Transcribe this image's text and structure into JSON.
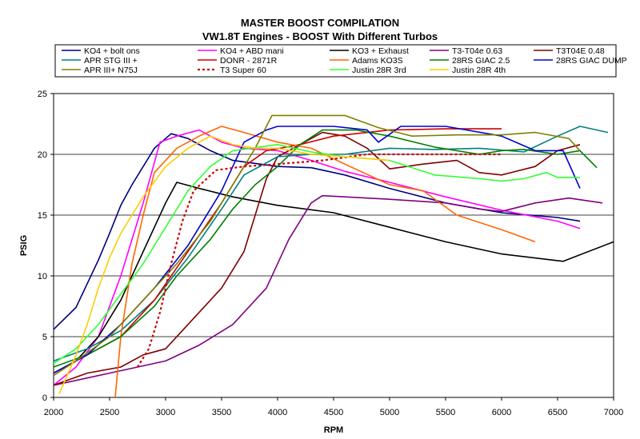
{
  "chart_data": {
    "type": "line",
    "title": "MASTER BOOST COMPILATION",
    "subtitle": "VW1.8T Engines - BOOST With Different Turbos",
    "xlabel": "RPM",
    "ylabel": "PSIG",
    "xlim": [
      2000,
      7000
    ],
    "ylim": [
      0,
      25
    ],
    "xticks": [
      "2000",
      "2500",
      "3000",
      "3500",
      "4000",
      "4500",
      "5000",
      "5500",
      "6000",
      "6500",
      "7000"
    ],
    "yticks": [
      "0",
      "5",
      "10",
      "15",
      "20",
      "25"
    ],
    "grid": "horizontal",
    "legend_position": "top",
    "series": [
      {
        "name": "KO4 + bolt ons",
        "color": "#000080",
        "dash": false,
        "points": [
          [
            2000,
            5.6
          ],
          [
            2200,
            7.4
          ],
          [
            2400,
            11.3
          ],
          [
            2500,
            13.5
          ],
          [
            2600,
            15.8
          ],
          [
            2700,
            17.5
          ],
          [
            2900,
            20.5
          ],
          [
            3050,
            21.7
          ],
          [
            3200,
            21.3
          ],
          [
            3400,
            20.3
          ],
          [
            3600,
            19.5
          ],
          [
            4000,
            19.0
          ],
          [
            4300,
            18.9
          ],
          [
            4600,
            18.3
          ],
          [
            5000,
            17.2
          ],
          [
            5500,
            16.0
          ],
          [
            6000,
            15.2
          ],
          [
            6500,
            14.8
          ],
          [
            6700,
            14.5
          ]
        ]
      },
      {
        "name": "KO4 + ABD mani",
        "color": "#ff00ff",
        "dash": false,
        "points": [
          [
            2000,
            1.0
          ],
          [
            2200,
            2.5
          ],
          [
            2400,
            5.0
          ],
          [
            2600,
            10.0
          ],
          [
            2800,
            16.0
          ],
          [
            2950,
            21.0
          ],
          [
            3100,
            21.5
          ],
          [
            3300,
            22.0
          ],
          [
            3500,
            21.0
          ],
          [
            3700,
            20.5
          ],
          [
            4000,
            20.3
          ],
          [
            4300,
            19.5
          ],
          [
            4600,
            18.6
          ],
          [
            5000,
            17.7
          ],
          [
            5500,
            16.5
          ],
          [
            6000,
            15.4
          ],
          [
            6500,
            14.5
          ],
          [
            6700,
            13.9
          ]
        ]
      },
      {
        "name": "KO3 + Exhaust",
        "color": "#000000",
        "dash": false,
        "points": [
          [
            2000,
            2.0
          ],
          [
            2200,
            3.0
          ],
          [
            2400,
            5.0
          ],
          [
            2600,
            8.0
          ],
          [
            2800,
            12.0
          ],
          [
            3000,
            16.0
          ],
          [
            3100,
            17.7
          ],
          [
            3300,
            17.2
          ],
          [
            3600,
            16.5
          ],
          [
            4000,
            15.8
          ],
          [
            4500,
            15.2
          ],
          [
            5000,
            14.0
          ],
          [
            5500,
            12.8
          ],
          [
            6000,
            11.8
          ],
          [
            6550,
            11.2
          ],
          [
            7000,
            12.8
          ]
        ]
      },
      {
        "name": "T3-T04e 0.63",
        "color": "#800080",
        "dash": false,
        "points": [
          [
            2000,
            1.0
          ],
          [
            2500,
            2.0
          ],
          [
            2800,
            2.6
          ],
          [
            3000,
            3.0
          ],
          [
            3300,
            4.3
          ],
          [
            3600,
            6.0
          ],
          [
            3900,
            9.0
          ],
          [
            4100,
            13.0
          ],
          [
            4300,
            16.0
          ],
          [
            4400,
            16.6
          ],
          [
            5000,
            16.3
          ],
          [
            5500,
            16.0
          ],
          [
            5800,
            15.5
          ],
          [
            6000,
            15.3
          ],
          [
            6300,
            16.0
          ],
          [
            6600,
            16.4
          ],
          [
            6900,
            16.0
          ]
        ]
      },
      {
        "name": "T3T04E 0.48",
        "color": "#800000",
        "dash": false,
        "points": [
          [
            2000,
            1.0
          ],
          [
            2300,
            2.0
          ],
          [
            2600,
            2.5
          ],
          [
            2800,
            3.5
          ],
          [
            3000,
            4.0
          ],
          [
            3200,
            6.0
          ],
          [
            3500,
            9.0
          ],
          [
            3700,
            12.0
          ],
          [
            3900,
            18.0
          ],
          [
            4000,
            19.8
          ],
          [
            4200,
            20.8
          ],
          [
            4400,
            21.8
          ],
          [
            4600,
            21.5
          ],
          [
            4800,
            20.5
          ],
          [
            5000,
            18.8
          ],
          [
            5300,
            19.2
          ],
          [
            5600,
            19.5
          ],
          [
            5800,
            18.5
          ],
          [
            6000,
            18.3
          ],
          [
            6300,
            19.0
          ],
          [
            6500,
            20.3
          ],
          [
            6700,
            20.8
          ]
        ]
      },
      {
        "name": "APR STG III +",
        "color": "#008080",
        "dash": false,
        "points": [
          [
            2000,
            3.0
          ],
          [
            2300,
            4.0
          ],
          [
            2600,
            5.5
          ],
          [
            2900,
            8.0
          ],
          [
            3200,
            11.5
          ],
          [
            3500,
            15.5
          ],
          [
            3700,
            18.3
          ],
          [
            4000,
            19.8
          ],
          [
            4300,
            20.0
          ],
          [
            4600,
            20.0
          ],
          [
            5000,
            20.5
          ],
          [
            5400,
            20.4
          ],
          [
            5800,
            20.5
          ],
          [
            6200,
            20.2
          ],
          [
            6500,
            21.5
          ],
          [
            6700,
            22.3
          ],
          [
            6950,
            21.8
          ]
        ]
      },
      {
        "name": "DONR - 2871R",
        "color": "#cc0000",
        "dash": false,
        "points": [
          [
            2000,
            2.0
          ],
          [
            2300,
            3.5
          ],
          [
            2600,
            5.0
          ],
          [
            2900,
            8.0
          ],
          [
            3200,
            12.0
          ],
          [
            3500,
            16.0
          ],
          [
            3700,
            19.0
          ],
          [
            3900,
            20.3
          ],
          [
            4200,
            20.8
          ],
          [
            4500,
            21.5
          ],
          [
            5000,
            22.0
          ],
          [
            5500,
            22.1
          ],
          [
            6000,
            22.1
          ]
        ]
      },
      {
        "name": "Adams KO3S",
        "color": "#ff6600",
        "dash": false,
        "points": [
          [
            2550,
            0.0
          ],
          [
            2600,
            5.0
          ],
          [
            2700,
            11.0
          ],
          [
            2800,
            15.0
          ],
          [
            2900,
            18.5
          ],
          [
            3100,
            20.5
          ],
          [
            3300,
            21.5
          ],
          [
            3500,
            22.3
          ],
          [
            3700,
            21.8
          ],
          [
            4000,
            21.0
          ],
          [
            4300,
            20.5
          ],
          [
            4600,
            19.2
          ],
          [
            5000,
            17.5
          ],
          [
            5300,
            17.0
          ],
          [
            5600,
            15.0
          ],
          [
            6000,
            13.8
          ],
          [
            6300,
            12.8
          ]
        ]
      },
      {
        "name": "28RS GIAC 2.5",
        "color": "#008000",
        "dash": false,
        "points": [
          [
            2000,
            2.5
          ],
          [
            2300,
            3.5
          ],
          [
            2600,
            5.0
          ],
          [
            2900,
            7.5
          ],
          [
            3100,
            10.0
          ],
          [
            3400,
            13.0
          ],
          [
            3600,
            15.5
          ],
          [
            3800,
            17.5
          ],
          [
            4000,
            19.0
          ],
          [
            4200,
            20.8
          ],
          [
            4400,
            22.0
          ],
          [
            4700,
            22.0
          ],
          [
            5000,
            21.5
          ],
          [
            5400,
            20.6
          ],
          [
            5800,
            20.0
          ],
          [
            6000,
            20.3
          ],
          [
            6200,
            20.4
          ],
          [
            6500,
            20.0
          ],
          [
            6700,
            20.3
          ],
          [
            6850,
            18.9
          ]
        ]
      },
      {
        "name": "28RS GIAC DUMP",
        "color": "#0000cc",
        "dash": false,
        "points": [
          [
            2000,
            2.0
          ],
          [
            2300,
            3.5
          ],
          [
            2600,
            6.0
          ],
          [
            2900,
            9.0
          ],
          [
            3200,
            12.5
          ],
          [
            3500,
            17.0
          ],
          [
            3700,
            21.0
          ],
          [
            3900,
            22.0
          ],
          [
            4000,
            22.3
          ],
          [
            4500,
            22.3
          ],
          [
            4800,
            22.0
          ],
          [
            4900,
            21.0
          ],
          [
            5100,
            22.3
          ],
          [
            5500,
            22.3
          ],
          [
            6000,
            21.5
          ],
          [
            6300,
            20.3
          ],
          [
            6550,
            20.3
          ],
          [
            6700,
            17.2
          ]
        ]
      },
      {
        "name": "APR III+ N75J",
        "color": "#808000",
        "dash": false,
        "points": [
          [
            2000,
            1.8
          ],
          [
            2200,
            3.0
          ],
          [
            2500,
            5.0
          ],
          [
            2800,
            8.0
          ],
          [
            3100,
            11.0
          ],
          [
            3400,
            14.5
          ],
          [
            3600,
            17.5
          ],
          [
            3800,
            20.5
          ],
          [
            3950,
            23.2
          ],
          [
            4300,
            23.2
          ],
          [
            4600,
            23.2
          ],
          [
            4900,
            22.2
          ],
          [
            5200,
            21.5
          ],
          [
            5600,
            21.6
          ],
          [
            6000,
            21.6
          ],
          [
            6300,
            21.8
          ],
          [
            6600,
            21.3
          ],
          [
            6700,
            20.3
          ]
        ]
      },
      {
        "name": "T3 Super 60",
        "color": "#cc0000",
        "dash": true,
        "points": [
          [
            2750,
            2.5
          ],
          [
            2850,
            4.0
          ],
          [
            2950,
            7.0
          ],
          [
            3050,
            11.0
          ],
          [
            3150,
            14.5
          ],
          [
            3250,
            17.0
          ],
          [
            3450,
            18.7
          ],
          [
            3700,
            19.0
          ],
          [
            4000,
            19.2
          ],
          [
            4400,
            19.5
          ],
          [
            4800,
            20.0
          ],
          [
            5200,
            20.0
          ],
          [
            5600,
            20.0
          ],
          [
            6000,
            20.0
          ]
        ]
      },
      {
        "name": "Justin 28R 3rd",
        "color": "#33ff33",
        "dash": false,
        "points": [
          [
            2000,
            2.8
          ],
          [
            2200,
            4.0
          ],
          [
            2400,
            6.0
          ],
          [
            2600,
            8.5
          ],
          [
            2800,
            11.0
          ],
          [
            3000,
            14.0
          ],
          [
            3200,
            17.0
          ],
          [
            3400,
            19.0
          ],
          [
            3600,
            20.3
          ],
          [
            4000,
            20.8
          ],
          [
            4300,
            20.2
          ],
          [
            4600,
            19.8
          ],
          [
            5000,
            19.5
          ],
          [
            5400,
            18.3
          ],
          [
            5800,
            18.0
          ],
          [
            6000,
            17.8
          ],
          [
            6200,
            18.0
          ],
          [
            6400,
            18.5
          ],
          [
            6500,
            18.1
          ],
          [
            6700,
            18.1
          ]
        ]
      },
      {
        "name": "Justin 28R 4th",
        "color": "#ffcc00",
        "dash": false,
        "points": [
          [
            2050,
            0.3
          ],
          [
            2200,
            3.5
          ],
          [
            2300,
            6.0
          ],
          [
            2400,
            9.0
          ],
          [
            2500,
            11.5
          ],
          [
            2600,
            13.5
          ],
          [
            2800,
            16.5
          ],
          [
            3000,
            19.0
          ],
          [
            3200,
            20.5
          ],
          [
            3400,
            21.5
          ],
          [
            3600,
            20.8
          ],
          [
            3800,
            20.5
          ],
          [
            4000,
            20.5
          ],
          [
            4300,
            20.0
          ],
          [
            4600,
            19.8
          ],
          [
            5000,
            19.5
          ]
        ]
      }
    ]
  }
}
